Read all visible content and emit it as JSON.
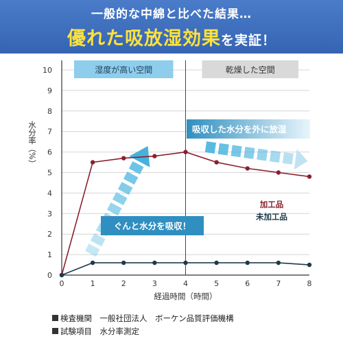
{
  "header": {
    "subtitle": "一般的な中綿と比べた結果…",
    "title_highlight": "優れた吸放湿効果",
    "title_rest": "を実証！"
  },
  "chart_data": {
    "type": "line",
    "x": [
      0,
      1,
      2,
      3,
      4,
      5,
      6,
      7,
      8
    ],
    "xlim": [
      0,
      8
    ],
    "ylim": [
      0,
      10
    ],
    "x_ticks": [
      "0",
      "1",
      "2",
      "3",
      "4",
      "5",
      "6",
      "7",
      "8"
    ],
    "y_ticks": [
      "0",
      "1",
      "2",
      "3",
      "4",
      "5",
      "6",
      "7",
      "8",
      "9",
      "10"
    ],
    "xlabel": "経過時間（時間）",
    "ylabel": "水分率（%）",
    "grid": true,
    "series": [
      {
        "name": "加工品",
        "color": "#8b1f2f",
        "values": [
          0,
          5.5,
          5.7,
          5.8,
          6.0,
          5.5,
          5.2,
          5.0,
          4.8
        ]
      },
      {
        "name": "未加工品",
        "color": "#1e3a4a",
        "values": [
          0,
          0.6,
          0.6,
          0.6,
          0.6,
          0.6,
          0.6,
          0.6,
          0.5
        ]
      }
    ],
    "regions": [
      {
        "label": "湿度が高い空間",
        "x_range": [
          0,
          4
        ]
      },
      {
        "label": "乾燥した空間",
        "x_range": [
          4,
          8
        ]
      }
    ],
    "annotations": {
      "release": "吸収した水分を外に放湿",
      "absorb": "ぐんと水分を吸収！"
    }
  },
  "footer": {
    "line1": "検査機関　一般社団法人　ボーケン品質評価機構",
    "line2": "試験項目　水分率測定"
  }
}
